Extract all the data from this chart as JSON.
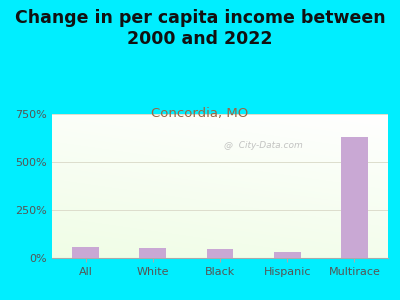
{
  "title": "Change in per capita income between\n2000 and 2022",
  "subtitle": "Concordia, MO",
  "categories": [
    "All",
    "White",
    "Black",
    "Hispanic",
    "Multirace"
  ],
  "values": [
    55,
    50,
    48,
    30,
    630
  ],
  "bar_color": "#c9a8d4",
  "title_fontsize": 12.5,
  "subtitle_fontsize": 9.5,
  "subtitle_color": "#996644",
  "tick_label_color": "#555555",
  "background_outer": "#00eeff",
  "ylim": [
    0,
    750
  ],
  "yticks": [
    0,
    250,
    500,
    750
  ],
  "ytick_labels": [
    "0%",
    "250%",
    "500%",
    "750%"
  ],
  "grid_color": "#ddddcc",
  "watermark": "@  City-Data.com"
}
